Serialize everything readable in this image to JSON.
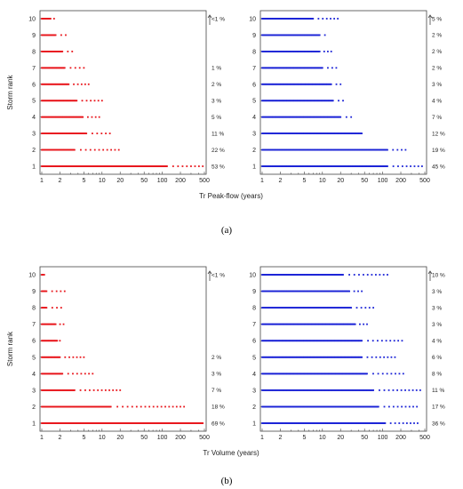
{
  "colors": {
    "red": "#e8151b",
    "blue": "#1a22d6"
  },
  "chart_data": [
    {
      "type": "scatter",
      "panel": "a",
      "series_color": "red",
      "xlabel": "",
      "ylabel": "Storm rank",
      "xscale": "log",
      "xlim": [
        1,
        500
      ],
      "ylim": [
        1,
        10
      ],
      "xticks": [
        "1",
        "2",
        "5",
        "10",
        "20",
        "50",
        "100",
        "200",
        "500"
      ],
      "yticks": [
        "1",
        "2",
        "3",
        "4",
        "5",
        "6",
        "7",
        "8",
        "9",
        "10"
      ],
      "rank_max_tr": [
        470,
        19,
        13.5,
        9,
        10,
        6,
        5,
        3.2,
        2.5,
        1.6
      ],
      "rank_dense_until": [
        120,
        3.5,
        5.5,
        4.8,
        3.8,
        2.8,
        2.4,
        2.2,
        1.7,
        1.4
      ],
      "percent_labels": [
        "53 %",
        "22 %",
        "11 %",
        "5 %",
        "3 %",
        "2 %",
        "1 %",
        "",
        "",
        "<1 %"
      ]
    },
    {
      "type": "scatter",
      "panel": "a",
      "series_color": "blue",
      "xlabel": "",
      "ylabel": "",
      "xscale": "log",
      "xlim": [
        1,
        500
      ],
      "ylim": [
        1,
        10
      ],
      "xticks": [
        "1",
        "2",
        "5",
        "10",
        "20",
        "50",
        "100",
        "200",
        "500"
      ],
      "yticks": [
        "1",
        "2",
        "3",
        "4",
        "5",
        "6",
        "7",
        "8",
        "9",
        "10"
      ],
      "rank_max_tr": [
        450,
        240,
        40,
        30,
        22,
        20,
        17,
        14,
        11,
        18
      ],
      "rank_dense_until": [
        120,
        120,
        45,
        20,
        15,
        14,
        10,
        9,
        9,
        7
      ],
      "percent_labels": [
        "45 %",
        "19 %",
        "12 %",
        "7 %",
        "4 %",
        "3 %",
        "2 %",
        "2 %",
        "2 %",
        "5 %"
      ]
    },
    {
      "type": "scatter",
      "panel": "b",
      "series_color": "red",
      "xlabel": "",
      "ylabel": "Storm rank",
      "xscale": "log",
      "xlim": [
        1,
        500
      ],
      "ylim": [
        1,
        10
      ],
      "xticks": [
        "1",
        "2",
        "5",
        "10",
        "20",
        "50",
        "100",
        "200",
        "500"
      ],
      "yticks": [
        "1",
        "2",
        "3",
        "4",
        "5",
        "6",
        "7",
        "8",
        "9",
        "10"
      ],
      "rank_max_tr": [
        470,
        230,
        20,
        7,
        5,
        2,
        2.3,
        2.1,
        2.4,
        1.1
      ],
      "rank_dense_until": [
        470,
        14,
        3.5,
        2.2,
        2,
        1.8,
        1.7,
        1.2,
        1.2,
        1.05
      ],
      "percent_labels": [
        "69 %",
        "18 %",
        "7 %",
        "3 %",
        "2 %",
        "",
        "",
        "",
        "",
        "<1 %"
      ]
    },
    {
      "type": "scatter",
      "panel": "b",
      "series_color": "blue",
      "xlabel": "",
      "ylabel": "",
      "xscale": "log",
      "xlim": [
        1,
        500
      ],
      "ylim": [
        1,
        10
      ],
      "xticks": [
        "1",
        "2",
        "5",
        "10",
        "20",
        "50",
        "100",
        "200",
        "500"
      ],
      "yticks": [
        "1",
        "2",
        "3",
        "4",
        "5",
        "6",
        "7",
        "8",
        "9",
        "10"
      ],
      "rank_max_tr": [
        380,
        370,
        420,
        220,
        160,
        210,
        55,
        70,
        45,
        120
      ],
      "rank_dense_until": [
        110,
        85,
        70,
        55,
        45,
        45,
        35,
        30,
        28,
        22
      ],
      "percent_labels": [
        "36 %",
        "17 %",
        "11 %",
        "8 %",
        "6 %",
        "4 %",
        "3 %",
        "3 %",
        "3 %",
        "10 %"
      ]
    }
  ],
  "shared_xlabels": {
    "a": "Tr Peak-flow (years)",
    "b": "Tr Volume (years)"
  },
  "panel_labels": {
    "a": "(a)",
    "b": "(b)"
  }
}
